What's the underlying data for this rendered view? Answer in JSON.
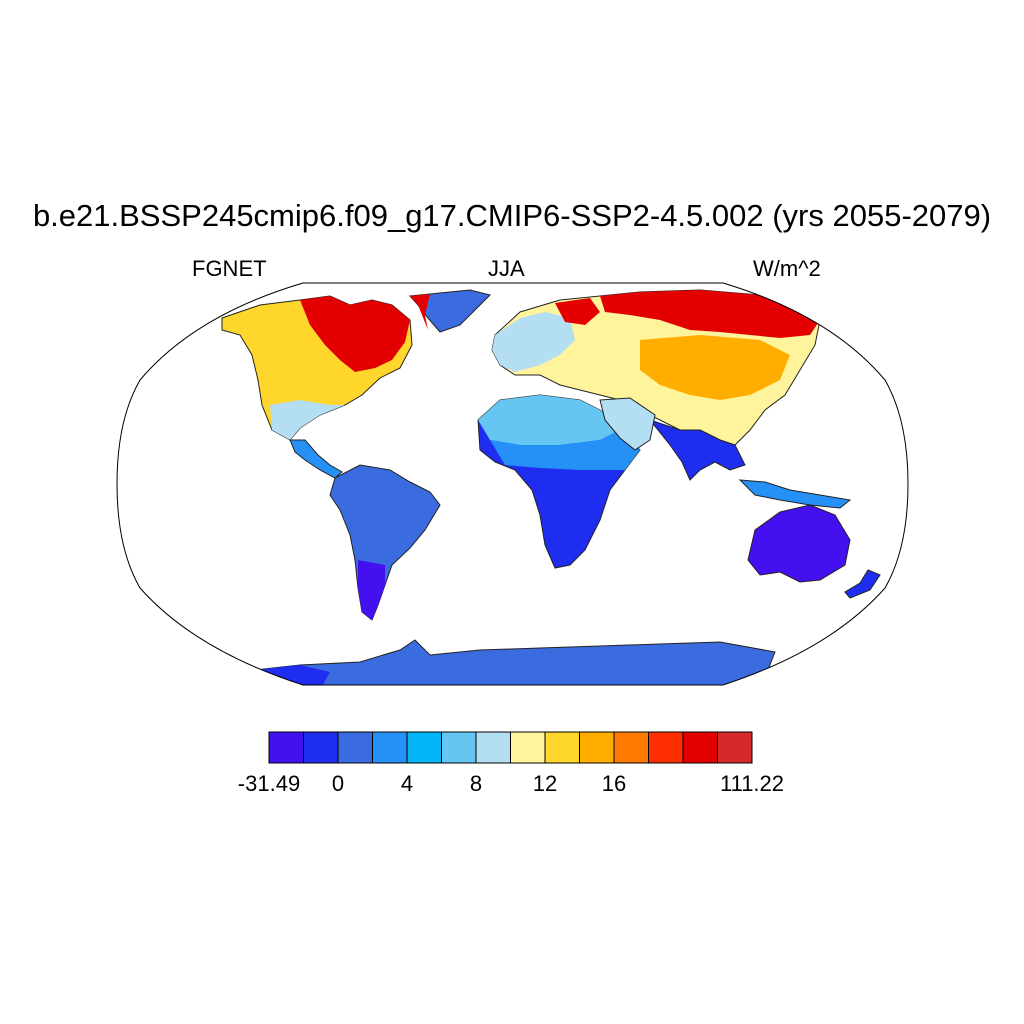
{
  "title": "b.e21.BSSP245cmip6.f09_g17.CMIP6-SSP2-4.5.002 (yrs 2055-2079)",
  "subtitles": {
    "left": "FGNET",
    "center": "JJA",
    "right": "W/m^2"
  },
  "colorbar": {
    "colors": [
      "#4410F0",
      "#1E2DF0",
      "#3A6CE0",
      "#2590F5",
      "#00B4F5",
      "#66C6F2",
      "#B4DEF2",
      "#FFF49C",
      "#FFD72C",
      "#FFAE00",
      "#FF7A00",
      "#FF2E00",
      "#E20000",
      "#D62A2A"
    ],
    "labels": [
      "-31.49",
      "0",
      "4",
      "8",
      "12",
      "16",
      "111.22"
    ],
    "label_slots": [
      0,
      2,
      4,
      6,
      8,
      10,
      14
    ]
  },
  "map": {
    "projection": "Robinson",
    "field": "FGNET",
    "season": "JJA",
    "units": "W/m^2"
  }
}
